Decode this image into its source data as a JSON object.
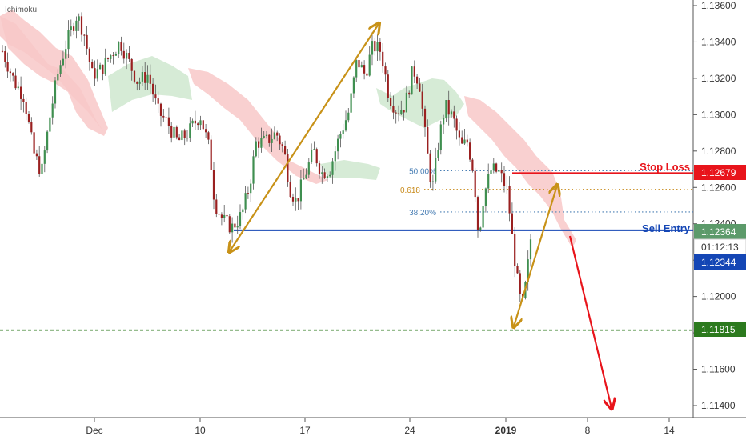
{
  "indicator_label": "Ichimoku",
  "colors": {
    "candle_up": "#3f8f50",
    "candle_down": "#9a2020",
    "cloud_bull": "#cfe8cf",
    "cloud_bear": "#f8c8c8",
    "fib_blue": "#4a7fb5",
    "fib_gold": "#c88a1a",
    "arrow_gold": "#c89218",
    "stop_red": "#e8141b",
    "entry_blue": "#1446b5",
    "target_green": "#2c7a1e",
    "price_box_green": "#5c9a6a"
  },
  "chart_data": {
    "type": "candlestick",
    "title": "",
    "ylim": [
      1.1135,
      1.1365
    ],
    "x_ticks": [
      "Dec",
      "10",
      "17",
      "24",
      "2019",
      "8",
      "14"
    ],
    "y_ticks": [
      "1.13600",
      "1.13400",
      "1.13200",
      "1.13000",
      "1.12800",
      "1.12600",
      "1.12400",
      "1.12200",
      "1.12000",
      "1.11800",
      "1.11600",
      "1.11400"
    ],
    "levels": {
      "stop_loss": {
        "label": "Stop Loss",
        "price": "1.12679",
        "value": 1.12679
      },
      "sell_entry": {
        "label": "Sell Entry",
        "price": "1.12364",
        "value": 1.12364
      },
      "target": {
        "price": "1.11815",
        "value": 1.11815
      },
      "current_price": {
        "price": "1.12344",
        "value": 1.12344
      },
      "countdown": "01:12:13"
    },
    "fib_levels": [
      {
        "label": "50.00%",
        "value": 1.12692
      },
      {
        "label": "0.618",
        "value": 1.12589
      },
      {
        "label": "38.20%",
        "value": 1.12465
      }
    ]
  }
}
